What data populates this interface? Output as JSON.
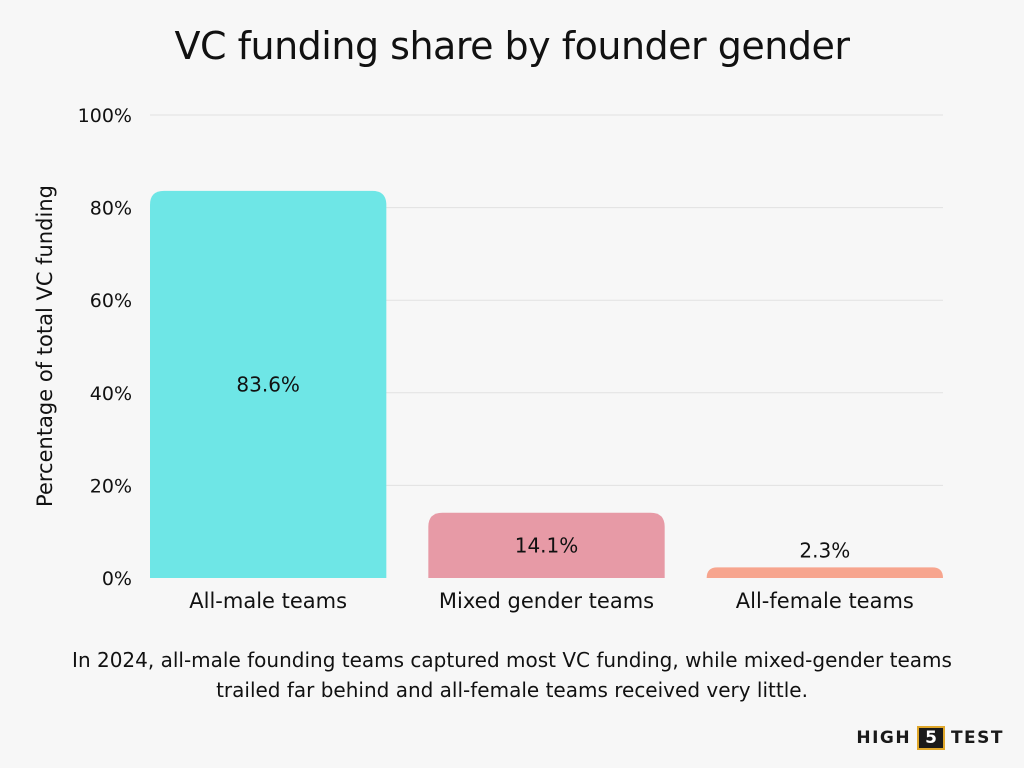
{
  "chart_data": {
    "type": "bar",
    "title": "VC funding share by founder gender",
    "ylabel": "Percentage of total VC funding",
    "xlabel": "",
    "categories": [
      "All-male teams",
      "Mixed gender teams",
      "All-female teams"
    ],
    "values": [
      83.6,
      14.1,
      2.3
    ],
    "value_labels": [
      "83.6%",
      "14.1%",
      "2.3%"
    ],
    "colors": [
      "#6ee6e6",
      "#e79aa6",
      "#f7a58e"
    ],
    "ylim": [
      0,
      100
    ],
    "yticks": [
      0,
      20,
      40,
      60,
      80,
      100
    ],
    "ytick_labels": [
      "0%",
      "20%",
      "40%",
      "60%",
      "80%",
      "100%"
    ],
    "grid": true,
    "legend": "none"
  },
  "caption": "In 2024, all-male founding teams captured most VC funding, while mixed-gender teams trailed far behind and all-female teams received very little.",
  "brand": {
    "left": "HIGH",
    "middle": "5",
    "right": "TEST"
  }
}
